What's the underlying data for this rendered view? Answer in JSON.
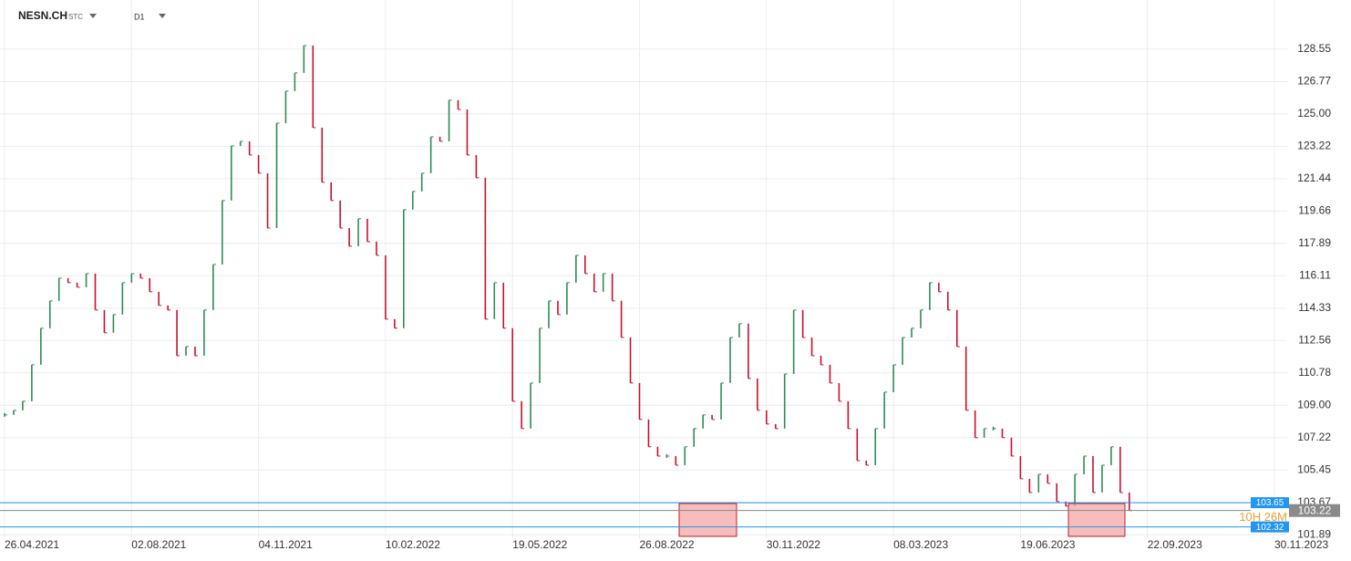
{
  "header": {
    "symbol": "NESN.CH",
    "subtype": "STC",
    "timeframe": "D1"
  },
  "chart_data": {
    "type": "bar",
    "categories": [
      "26.04.2021",
      null,
      null,
      null,
      null,
      null,
      null,
      null,
      null,
      null,
      null,
      null,
      null,
      null,
      "02.08.2021",
      null,
      null,
      null,
      null,
      null,
      null,
      null,
      null,
      null,
      null,
      null,
      null,
      null,
      "04.11.2021",
      null,
      null,
      null,
      null,
      null,
      null,
      null,
      null,
      null,
      null,
      null,
      null,
      null,
      "10.02.2022",
      null,
      null,
      null,
      null,
      null,
      null,
      null,
      null,
      null,
      null,
      null,
      null,
      null,
      "19.05.2022",
      null,
      null,
      null,
      null,
      null,
      null,
      null,
      null,
      null,
      null,
      null,
      null,
      null,
      "26.08.2022",
      null,
      null,
      null,
      null,
      null,
      null,
      null,
      null,
      null,
      null,
      null,
      null,
      null,
      "30.11.2022",
      null,
      null,
      null,
      null,
      null,
      null,
      null,
      null,
      null,
      null,
      null,
      null,
      null,
      "08.03.2023",
      null,
      null,
      null,
      null,
      null,
      null,
      null,
      null,
      null,
      null,
      null,
      null,
      null,
      "19.06.2023",
      null,
      null,
      null,
      null,
      null,
      null,
      null,
      null,
      null,
      null,
      null,
      null,
      null,
      "22.09.2023",
      null,
      null,
      null,
      null,
      null,
      null,
      null,
      null,
      null,
      null,
      null,
      null,
      null,
      "30.11.2023"
    ],
    "series": [
      {
        "name": "NESN.CH",
        "up_color": "#2e8b57",
        "down_color": "#c8102e",
        "values": [
          108.47,
          108.72,
          109.22,
          111.22,
          113.23,
          114.73,
          115.98,
          115.73,
          115.48,
          116.23,
          114.23,
          112.98,
          113.98,
          115.73,
          116.23,
          115.98,
          115.23,
          114.48,
          114.23,
          111.72,
          112.22,
          111.72,
          114.23,
          116.73,
          120.24,
          123.24,
          123.49,
          122.74,
          121.74,
          118.73,
          124.49,
          126.25,
          127.25,
          128.75,
          124.24,
          121.24,
          120.24,
          118.73,
          117.73,
          119.24,
          117.98,
          117.23,
          113.73,
          113.23,
          119.74,
          120.74,
          121.74,
          123.74,
          123.49,
          125.75,
          125.24,
          122.74,
          121.49,
          113.73,
          115.73,
          113.23,
          109.22,
          107.72,
          110.22,
          113.23,
          114.73,
          113.98,
          115.73,
          117.23,
          116.23,
          115.23,
          116.23,
          114.73,
          112.72,
          110.22,
          108.22,
          106.72,
          106.21,
          106.21,
          105.71,
          106.72,
          107.72,
          108.47,
          108.22,
          110.22,
          112.72,
          113.48,
          110.47,
          108.72,
          107.97,
          107.72,
          110.72,
          114.23,
          112.72,
          111.72,
          111.22,
          110.22,
          109.22,
          107.72,
          105.96,
          105.71,
          107.72,
          109.72,
          111.22,
          112.72,
          113.23,
          114.23,
          115.73,
          115.23,
          114.23,
          112.22,
          108.72,
          107.22,
          107.72,
          107.72,
          107.22,
          106.21,
          104.96,
          104.21,
          105.21,
          104.71,
          103.71,
          103.46,
          105.21,
          106.21,
          104.21,
          105.71,
          106.72,
          104.21,
          103.22,
          null,
          null,
          null,
          null,
          null,
          null,
          null,
          null,
          null,
          null,
          null,
          null,
          null,
          null,
          null,
          null
        ]
      }
    ],
    "ylim": [
      101.2,
      131.25
    ],
    "yticks": [
      128.55,
      126.77,
      {
        "value": 125,
        "label": "125.00"
      },
      123.22,
      121.44,
      119.66,
      117.89,
      116.11,
      114.33,
      112.56,
      110.78,
      {
        "value": 109,
        "label": "109.00"
      },
      107.22,
      105.45,
      103.67,
      101.89
    ],
    "grid": true,
    "price_lines": [
      {
        "value": 103.65,
        "color": "#2196f3"
      },
      {
        "value": 103.22,
        "color": "#8a8a8a"
      },
      {
        "value": 102.32,
        "color": "#2196f3"
      }
    ],
    "countdown": "10H 26M"
  }
}
